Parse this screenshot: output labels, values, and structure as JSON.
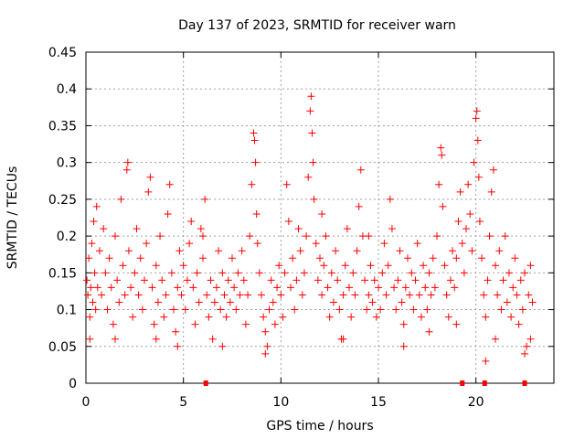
{
  "chart_data": {
    "type": "scatter",
    "title": "Day 137 of 2023, SRMTID for receiver warn",
    "xlabel": "GPS time / hours",
    "ylabel": "SRMTID / TECUs",
    "xlim": [
      0,
      24
    ],
    "ylim": [
      0,
      0.45
    ],
    "grid": true,
    "x_ticks": [
      0,
      5,
      10,
      15,
      20
    ],
    "x_tick_labels": [
      "0",
      "5",
      "10",
      "15",
      "20"
    ],
    "y_ticks": [
      0,
      0.05,
      0.1,
      0.15,
      0.2,
      0.25,
      0.3,
      0.35,
      0.4,
      0.45
    ],
    "y_tick_labels": [
      "0",
      "0.05",
      "0.1",
      "0.15",
      "0.2",
      "0.25",
      "0.3",
      "0.35",
      "0.4",
      "0.45"
    ],
    "marker": "+",
    "series": [
      {
        "name": "SRMTID",
        "color": "#ff0000",
        "points": [
          [
            0.05,
            0.14
          ],
          [
            0.1,
            0.12
          ],
          [
            0.15,
            0.17
          ],
          [
            0.2,
            0.09
          ],
          [
            0.25,
            0.13
          ],
          [
            0.3,
            0.19
          ],
          [
            0.35,
            0.11
          ],
          [
            0.4,
            0.22
          ],
          [
            0.45,
            0.15
          ],
          [
            0.5,
            0.1
          ],
          [
            0.55,
            0.24
          ],
          [
            0.6,
            0.13
          ],
          [
            0.7,
            0.18
          ],
          [
            0.8,
            0.12
          ],
          [
            0.9,
            0.21
          ],
          [
            1.0,
            0.15
          ],
          [
            1.1,
            0.1
          ],
          [
            1.2,
            0.17
          ],
          [
            1.3,
            0.13
          ],
          [
            1.4,
            0.08
          ],
          [
            1.5,
            0.2
          ],
          [
            1.6,
            0.14
          ],
          [
            1.7,
            0.11
          ],
          [
            1.8,
            0.25
          ],
          [
            1.9,
            0.16
          ],
          [
            2.0,
            0.12
          ],
          [
            2.1,
            0.29
          ],
          [
            2.15,
            0.3
          ],
          [
            2.2,
            0.18
          ],
          [
            2.3,
            0.13
          ],
          [
            2.4,
            0.09
          ],
          [
            2.5,
            0.15
          ],
          [
            2.6,
            0.21
          ],
          [
            2.7,
            0.12
          ],
          [
            2.8,
            0.17
          ],
          [
            2.9,
            0.1
          ],
          [
            3.0,
            0.14
          ],
          [
            3.1,
            0.19
          ],
          [
            3.2,
            0.26
          ],
          [
            3.3,
            0.28
          ],
          [
            3.4,
            0.13
          ],
          [
            3.5,
            0.08
          ],
          [
            3.6,
            0.16
          ],
          [
            3.7,
            0.11
          ],
          [
            3.8,
            0.2
          ],
          [
            3.9,
            0.14
          ],
          [
            4.0,
            0.09
          ],
          [
            4.1,
            0.12
          ],
          [
            4.2,
            0.23
          ],
          [
            4.3,
            0.27
          ],
          [
            4.4,
            0.15
          ],
          [
            4.5,
            0.1
          ],
          [
            4.6,
            0.07
          ],
          [
            4.7,
            0.13
          ],
          [
            4.8,
            0.18
          ],
          [
            4.9,
            0.12
          ],
          [
            5.0,
            0.16
          ],
          [
            5.1,
            0.1
          ],
          [
            5.2,
            0.14
          ],
          [
            5.3,
            0.19
          ],
          [
            5.4,
            0.22
          ],
          [
            5.5,
            0.13
          ],
          [
            5.6,
            0.08
          ],
          [
            5.7,
            0.15
          ],
          [
            5.8,
            0.11
          ],
          [
            5.9,
            0.21
          ],
          [
            6.0,
            0.17
          ],
          [
            6.1,
            0.25
          ],
          [
            6.2,
            0.12
          ],
          [
            6.3,
            0.09
          ],
          [
            6.4,
            0.14
          ],
          [
            6.5,
            0.06
          ],
          [
            6.6,
            0.11
          ],
          [
            6.7,
            0.13
          ],
          [
            6.8,
            0.18
          ],
          [
            6.9,
            0.1
          ],
          [
            7.0,
            0.15
          ],
          [
            7.1,
            0.12
          ],
          [
            7.2,
            0.09
          ],
          [
            7.3,
            0.14
          ],
          [
            7.4,
            0.11
          ],
          [
            7.5,
            0.17
          ],
          [
            7.6,
            0.13
          ],
          [
            7.7,
            0.1
          ],
          [
            7.8,
            0.15
          ],
          [
            7.9,
            0.12
          ],
          [
            8.0,
            0.18
          ],
          [
            8.1,
            0.14
          ],
          [
            8.2,
            0.08
          ],
          [
            8.3,
            0.12
          ],
          [
            8.4,
            0.2
          ],
          [
            8.5,
            0.27
          ],
          [
            8.6,
            0.34
          ],
          [
            8.65,
            0.33
          ],
          [
            8.7,
            0.3
          ],
          [
            8.75,
            0.23
          ],
          [
            8.8,
            0.19
          ],
          [
            8.9,
            0.15
          ],
          [
            9.0,
            0.12
          ],
          [
            9.1,
            0.09
          ],
          [
            9.2,
            0.07
          ],
          [
            9.3,
            0.05
          ],
          [
            9.4,
            0.1
          ],
          [
            9.5,
            0.14
          ],
          [
            9.6,
            0.11
          ],
          [
            9.7,
            0.08
          ],
          [
            9.8,
            0.13
          ],
          [
            9.9,
            0.16
          ],
          [
            10.0,
            0.12
          ],
          [
            10.1,
            0.09
          ],
          [
            10.2,
            0.15
          ],
          [
            10.3,
            0.27
          ],
          [
            10.4,
            0.22
          ],
          [
            10.5,
            0.13
          ],
          [
            10.6,
            0.17
          ],
          [
            10.7,
            0.1
          ],
          [
            10.8,
            0.14
          ],
          [
            10.9,
            0.21
          ],
          [
            11.0,
            0.18
          ],
          [
            11.1,
            0.12
          ],
          [
            11.2,
            0.15
          ],
          [
            11.3,
            0.2
          ],
          [
            11.4,
            0.28
          ],
          [
            11.5,
            0.37
          ],
          [
            11.55,
            0.39
          ],
          [
            11.6,
            0.34
          ],
          [
            11.65,
            0.3
          ],
          [
            11.7,
            0.25
          ],
          [
            11.8,
            0.19
          ],
          [
            11.9,
            0.14
          ],
          [
            12.0,
            0.17
          ],
          [
            12.1,
            0.12
          ],
          [
            12.2,
            0.16
          ],
          [
            12.3,
            0.2
          ],
          [
            12.4,
            0.13
          ],
          [
            12.5,
            0.09
          ],
          [
            12.6,
            0.15
          ],
          [
            12.7,
            0.11
          ],
          [
            12.8,
            0.18
          ],
          [
            12.9,
            0.14
          ],
          [
            13.0,
            0.1
          ],
          [
            13.1,
            0.06
          ],
          [
            13.2,
            0.12
          ],
          [
            13.3,
            0.16
          ],
          [
            13.4,
            0.21
          ],
          [
            13.5,
            0.13
          ],
          [
            13.6,
            0.09
          ],
          [
            13.7,
            0.15
          ],
          [
            13.8,
            0.12
          ],
          [
            13.9,
            0.18
          ],
          [
            14.0,
            0.24
          ],
          [
            14.1,
            0.29
          ],
          [
            14.2,
            0.2
          ],
          [
            14.3,
            0.14
          ],
          [
            14.4,
            0.1
          ],
          [
            14.5,
            0.12
          ],
          [
            14.6,
            0.16
          ],
          [
            14.7,
            0.11
          ],
          [
            14.8,
            0.14
          ],
          [
            14.9,
            0.09
          ],
          [
            15.0,
            0.13
          ],
          [
            15.1,
            0.1
          ],
          [
            15.2,
            0.15
          ],
          [
            15.3,
            0.19
          ],
          [
            15.4,
            0.12
          ],
          [
            15.5,
            0.16
          ],
          [
            15.6,
            0.25
          ],
          [
            15.7,
            0.21
          ],
          [
            15.8,
            0.13
          ],
          [
            15.9,
            0.1
          ],
          [
            16.0,
            0.14
          ],
          [
            16.1,
            0.18
          ],
          [
            16.2,
            0.11
          ],
          [
            16.3,
            0.08
          ],
          [
            16.4,
            0.13
          ],
          [
            16.5,
            0.17
          ],
          [
            16.6,
            0.12
          ],
          [
            16.7,
            0.15
          ],
          [
            16.8,
            0.1
          ],
          [
            16.9,
            0.14
          ],
          [
            17.0,
            0.19
          ],
          [
            17.1,
            0.12
          ],
          [
            17.2,
            0.09
          ],
          [
            17.3,
            0.16
          ],
          [
            17.4,
            0.13
          ],
          [
            17.5,
            0.1
          ],
          [
            17.6,
            0.15
          ],
          [
            17.7,
            0.12
          ],
          [
            17.8,
            0.17
          ],
          [
            17.9,
            0.13
          ],
          [
            18.0,
            0.2
          ],
          [
            18.1,
            0.27
          ],
          [
            18.2,
            0.32
          ],
          [
            18.25,
            0.31
          ],
          [
            18.3,
            0.24
          ],
          [
            18.4,
            0.16
          ],
          [
            18.5,
            0.12
          ],
          [
            18.6,
            0.09
          ],
          [
            18.7,
            0.14
          ],
          [
            18.8,
            0.18
          ],
          [
            18.9,
            0.13
          ],
          [
            19.0,
            0.17
          ],
          [
            19.1,
            0.22
          ],
          [
            19.2,
            0.26
          ],
          [
            19.3,
            0.19
          ],
          [
            19.4,
            0.15
          ],
          [
            19.5,
            0.21
          ],
          [
            19.6,
            0.27
          ],
          [
            19.7,
            0.23
          ],
          [
            19.8,
            0.18
          ],
          [
            19.9,
            0.3
          ],
          [
            20.0,
            0.36
          ],
          [
            20.05,
            0.37
          ],
          [
            20.1,
            0.33
          ],
          [
            20.15,
            0.28
          ],
          [
            20.2,
            0.22
          ],
          [
            20.3,
            0.17
          ],
          [
            20.4,
            0.12
          ],
          [
            20.5,
            0.09
          ],
          [
            20.6,
            0.14
          ],
          [
            20.7,
            0.2
          ],
          [
            20.8,
            0.26
          ],
          [
            20.9,
            0.29
          ],
          [
            21.0,
            0.16
          ],
          [
            21.1,
            0.12
          ],
          [
            21.2,
            0.18
          ],
          [
            21.3,
            0.1
          ],
          [
            21.4,
            0.14
          ],
          [
            21.5,
            0.2
          ],
          [
            21.6,
            0.11
          ],
          [
            21.7,
            0.15
          ],
          [
            21.8,
            0.09
          ],
          [
            21.9,
            0.13
          ],
          [
            22.0,
            0.17
          ],
          [
            22.1,
            0.12
          ],
          [
            22.2,
            0.08
          ],
          [
            22.3,
            0.14
          ],
          [
            22.4,
            0.1
          ],
          [
            22.5,
            0.15
          ],
          [
            22.6,
            0.05
          ],
          [
            22.7,
            0.12
          ],
          [
            22.8,
            0.16
          ],
          [
            22.9,
            0.11
          ],
          [
            20.5,
            0.03
          ],
          [
            22.5,
            0.04
          ],
          [
            0.2,
            0.06
          ],
          [
            1.5,
            0.06
          ],
          [
            3.6,
            0.06
          ],
          [
            4.7,
            0.05
          ],
          [
            7.0,
            0.05
          ],
          [
            9.2,
            0.04
          ],
          [
            13.2,
            0.06
          ],
          [
            16.3,
            0.05
          ],
          [
            17.6,
            0.07
          ],
          [
            19.0,
            0.08
          ],
          [
            21.0,
            0.06
          ],
          [
            22.8,
            0.06
          ],
          [
            6.0,
            0.2
          ],
          [
            12.1,
            0.23
          ],
          [
            14.5,
            0.2
          ]
        ]
      },
      {
        "name": "warnings",
        "color": "#ff0000",
        "points": [
          [
            6.15,
            0
          ],
          [
            19.3,
            0
          ],
          [
            20.45,
            0
          ],
          [
            22.5,
            0
          ]
        ]
      }
    ]
  }
}
